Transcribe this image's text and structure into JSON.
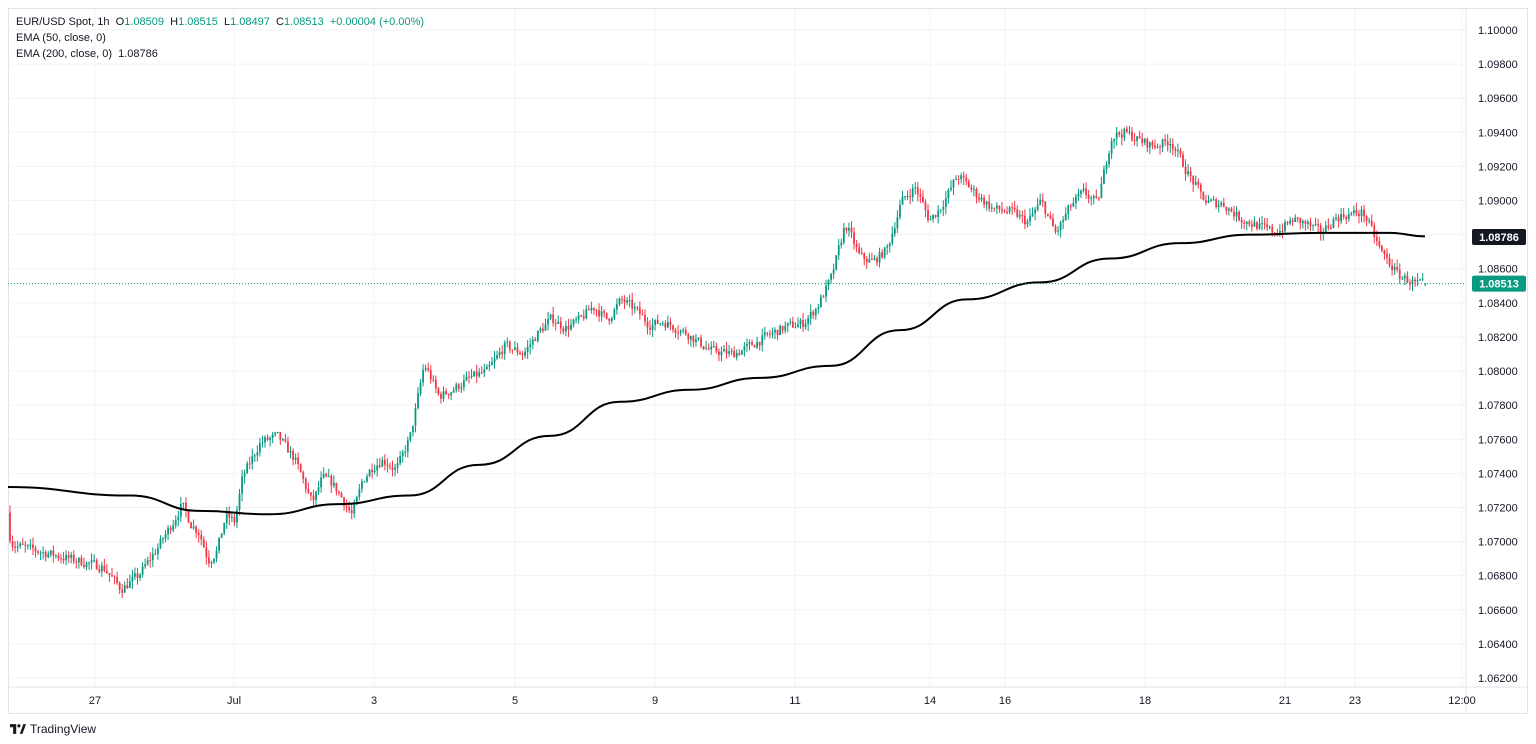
{
  "legend": {
    "symbol": "EUR/USD Spot, 1h",
    "open_label": "O",
    "open": "1.08509",
    "high_label": "H",
    "high": "1.08515",
    "low_label": "L",
    "low": "1.08497",
    "close_label": "C",
    "close": "1.08513",
    "change": "+0.00004 (+0.00%)",
    "ema50": "EMA (50, close, 0)",
    "ema200": "EMA (200, close, 0)",
    "ema200_value": "1.08786"
  },
  "brand": {
    "name": "TradingView",
    "icon": "tradingview-logo-icon"
  },
  "colors": {
    "up": "#089981",
    "down": "#f23645",
    "ema200": "#000000",
    "price_line": "#089981",
    "grid": "#f0f3fa"
  },
  "chart_data": {
    "type": "candlestick",
    "title": "EUR/USD Spot, 1h",
    "ylim": [
      1.0612,
      1.1012
    ],
    "y_ticks": [
      "1.10000",
      "1.09800",
      "1.09600",
      "1.09400",
      "1.09200",
      "1.09000",
      "1.08800",
      "1.08600",
      "1.08400",
      "1.08200",
      "1.08000",
      "1.07800",
      "1.07600",
      "1.07400",
      "1.07200",
      "1.07000",
      "1.06800",
      "1.06600",
      "1.06400",
      "1.06200"
    ],
    "x_ticks": [
      "27",
      "Jul",
      "3",
      "5",
      "9",
      "11",
      "14",
      "16",
      "18",
      "21",
      "23",
      "12:00"
    ],
    "x_range": [
      "Jun 26",
      "Jul 24"
    ],
    "ema200_value": "1.08786",
    "last_price": "1.08513",
    "price_path": [
      [
        "Jun 26",
        1.0717
      ],
      [
        "Jun 26",
        1.0712
      ],
      [
        "Jun 26",
        1.0698
      ],
      [
        "Jun 27",
        1.0685
      ],
      [
        "Jun 27",
        1.0672
      ],
      [
        "Jun 27",
        1.068
      ],
      [
        "Jun 27",
        1.0695
      ],
      [
        "Jun 28",
        1.0712
      ],
      [
        "Jun 28",
        1.0722
      ],
      [
        "Jun 28",
        1.071
      ],
      [
        "Jun 28",
        1.0705
      ],
      [
        "Jun 28",
        1.0688
      ],
      [
        "Jun 28",
        1.0695
      ],
      [
        "Jun 28",
        1.0716
      ],
      [
        "Jun 28",
        1.0711
      ],
      [
        "Jul 1",
        1.0738
      ],
      [
        "Jul 1",
        1.0758
      ],
      [
        "Jul 1",
        1.0762
      ],
      [
        "Jul 1",
        1.0748
      ],
      [
        "Jul 2",
        1.0722
      ],
      [
        "Jul 2",
        1.0738
      ],
      [
        "Jul 2",
        1.0734
      ],
      [
        "Jul 2",
        1.0725
      ],
      [
        "Jul 2",
        1.0715
      ],
      [
        "Jul 2",
        1.0736
      ],
      [
        "Jul 2",
        1.0744
      ],
      [
        "Jul 3",
        1.0748
      ],
      [
        "Jul 3",
        1.0742
      ],
      [
        "Jul 3",
        1.0762
      ],
      [
        "Jul 3",
        1.0805
      ],
      [
        "Jul 3",
        1.0785
      ],
      [
        "Jul 4",
        1.0789
      ],
      [
        "Jul 4",
        1.0796
      ],
      [
        "Jul 4",
        1.08
      ],
      [
        "Jul 4",
        1.0815
      ],
      [
        "Jul 5",
        1.081
      ],
      [
        "Jul 5",
        1.0822
      ],
      [
        "Jul 5",
        1.0831
      ],
      [
        "Jul 5",
        1.0825
      ],
      [
        "Jul 5",
        1.083
      ],
      [
        "Jul 8",
        1.0838
      ],
      [
        "Jul 8",
        1.083
      ],
      [
        "Jul 8",
        1.0842
      ],
      [
        "Jul 8",
        1.0836
      ],
      [
        "Jul 8",
        1.0827
      ],
      [
        "Jul 9",
        1.0829
      ],
      [
        "Jul 9",
        1.0822
      ],
      [
        "Jul 9",
        1.0812
      ],
      [
        "Jul 10",
        1.081
      ],
      [
        "Jul 10",
        1.0815
      ],
      [
        "Jul 10",
        1.0821
      ],
      [
        "Jul 10",
        1.0826
      ],
      [
        "Jul 11",
        1.0828
      ],
      [
        "Jul 11",
        1.0838
      ],
      [
        "Jul 11",
        1.0855
      ],
      [
        "Jul 11",
        1.0887
      ],
      [
        "Jul 11",
        1.0867
      ],
      [
        "Jul 12",
        1.0864
      ],
      [
        "Jul 12",
        1.0872
      ],
      [
        "Jul 12",
        1.09
      ],
      [
        "Jul 12",
        1.0908
      ],
      [
        "Jul 12",
        1.0888
      ],
      [
        "Jul 15",
        1.0896
      ],
      [
        "Jul 15",
        1.0915
      ],
      [
        "Jul 15",
        1.0904
      ],
      [
        "Jul 15",
        1.0895
      ],
      [
        "Jul 16",
        1.0893
      ],
      [
        "Jul 16",
        1.0887
      ],
      [
        "Jul 16",
        1.09
      ],
      [
        "Jul 16",
        1.088
      ],
      [
        "Jul 16",
        1.0896
      ],
      [
        "Jul 17",
        1.0905
      ],
      [
        "Jul 17",
        1.0898
      ],
      [
        "Jul 17",
        1.0938
      ],
      [
        "Jul 17",
        1.094
      ],
      [
        "Jul 17",
        1.0935
      ],
      [
        "Jul 18",
        1.0932
      ],
      [
        "Jul 18",
        1.0935
      ],
      [
        "Jul 18",
        1.0915
      ],
      [
        "Jul 18",
        1.0899
      ],
      [
        "Jul 19",
        1.0898
      ],
      [
        "Jul 19",
        1.0889
      ],
      [
        "Jul 19",
        1.0885
      ],
      [
        "Jul 19",
        1.0881
      ],
      [
        "Jul 22",
        1.0889
      ],
      [
        "Jul 22",
        1.0886
      ],
      [
        "Jul 22",
        1.0881
      ],
      [
        "Jul 22",
        1.089
      ],
      [
        "Jul 22",
        1.0892
      ],
      [
        "Jul 23",
        1.0893
      ],
      [
        "Jul 23",
        1.087
      ],
      [
        "Jul 23",
        1.0856
      ],
      [
        "Jul 23",
        1.0851
      ]
    ],
    "ema200": [
      [
        "Jun 26",
        1.0732
      ],
      [
        "Jun 27",
        1.0727
      ],
      [
        "Jun 28",
        1.0718
      ],
      [
        "Jul 1",
        1.0716
      ],
      [
        "Jul 2",
        1.0722
      ],
      [
        "Jul 3",
        1.0727
      ],
      [
        "Jul 4",
        1.0745
      ],
      [
        "Jul 5",
        1.0762
      ],
      [
        "Jul 8",
        1.0782
      ],
      [
        "Jul 9",
        1.0789
      ],
      [
        "Jul 10",
        1.0796
      ],
      [
        "Jul 11",
        1.0803
      ],
      [
        "Jul 12",
        1.0824
      ],
      [
        "Jul 15",
        1.0842
      ],
      [
        "Jul 16",
        1.0852
      ],
      [
        "Jul 17",
        1.0866
      ],
      [
        "Jul 18",
        1.0875
      ],
      [
        "Jul 19",
        1.088
      ],
      [
        "Jul 22",
        1.0881
      ],
      [
        "Jul 23",
        1.0881
      ],
      [
        "Jul 23",
        1.0879
      ]
    ]
  }
}
